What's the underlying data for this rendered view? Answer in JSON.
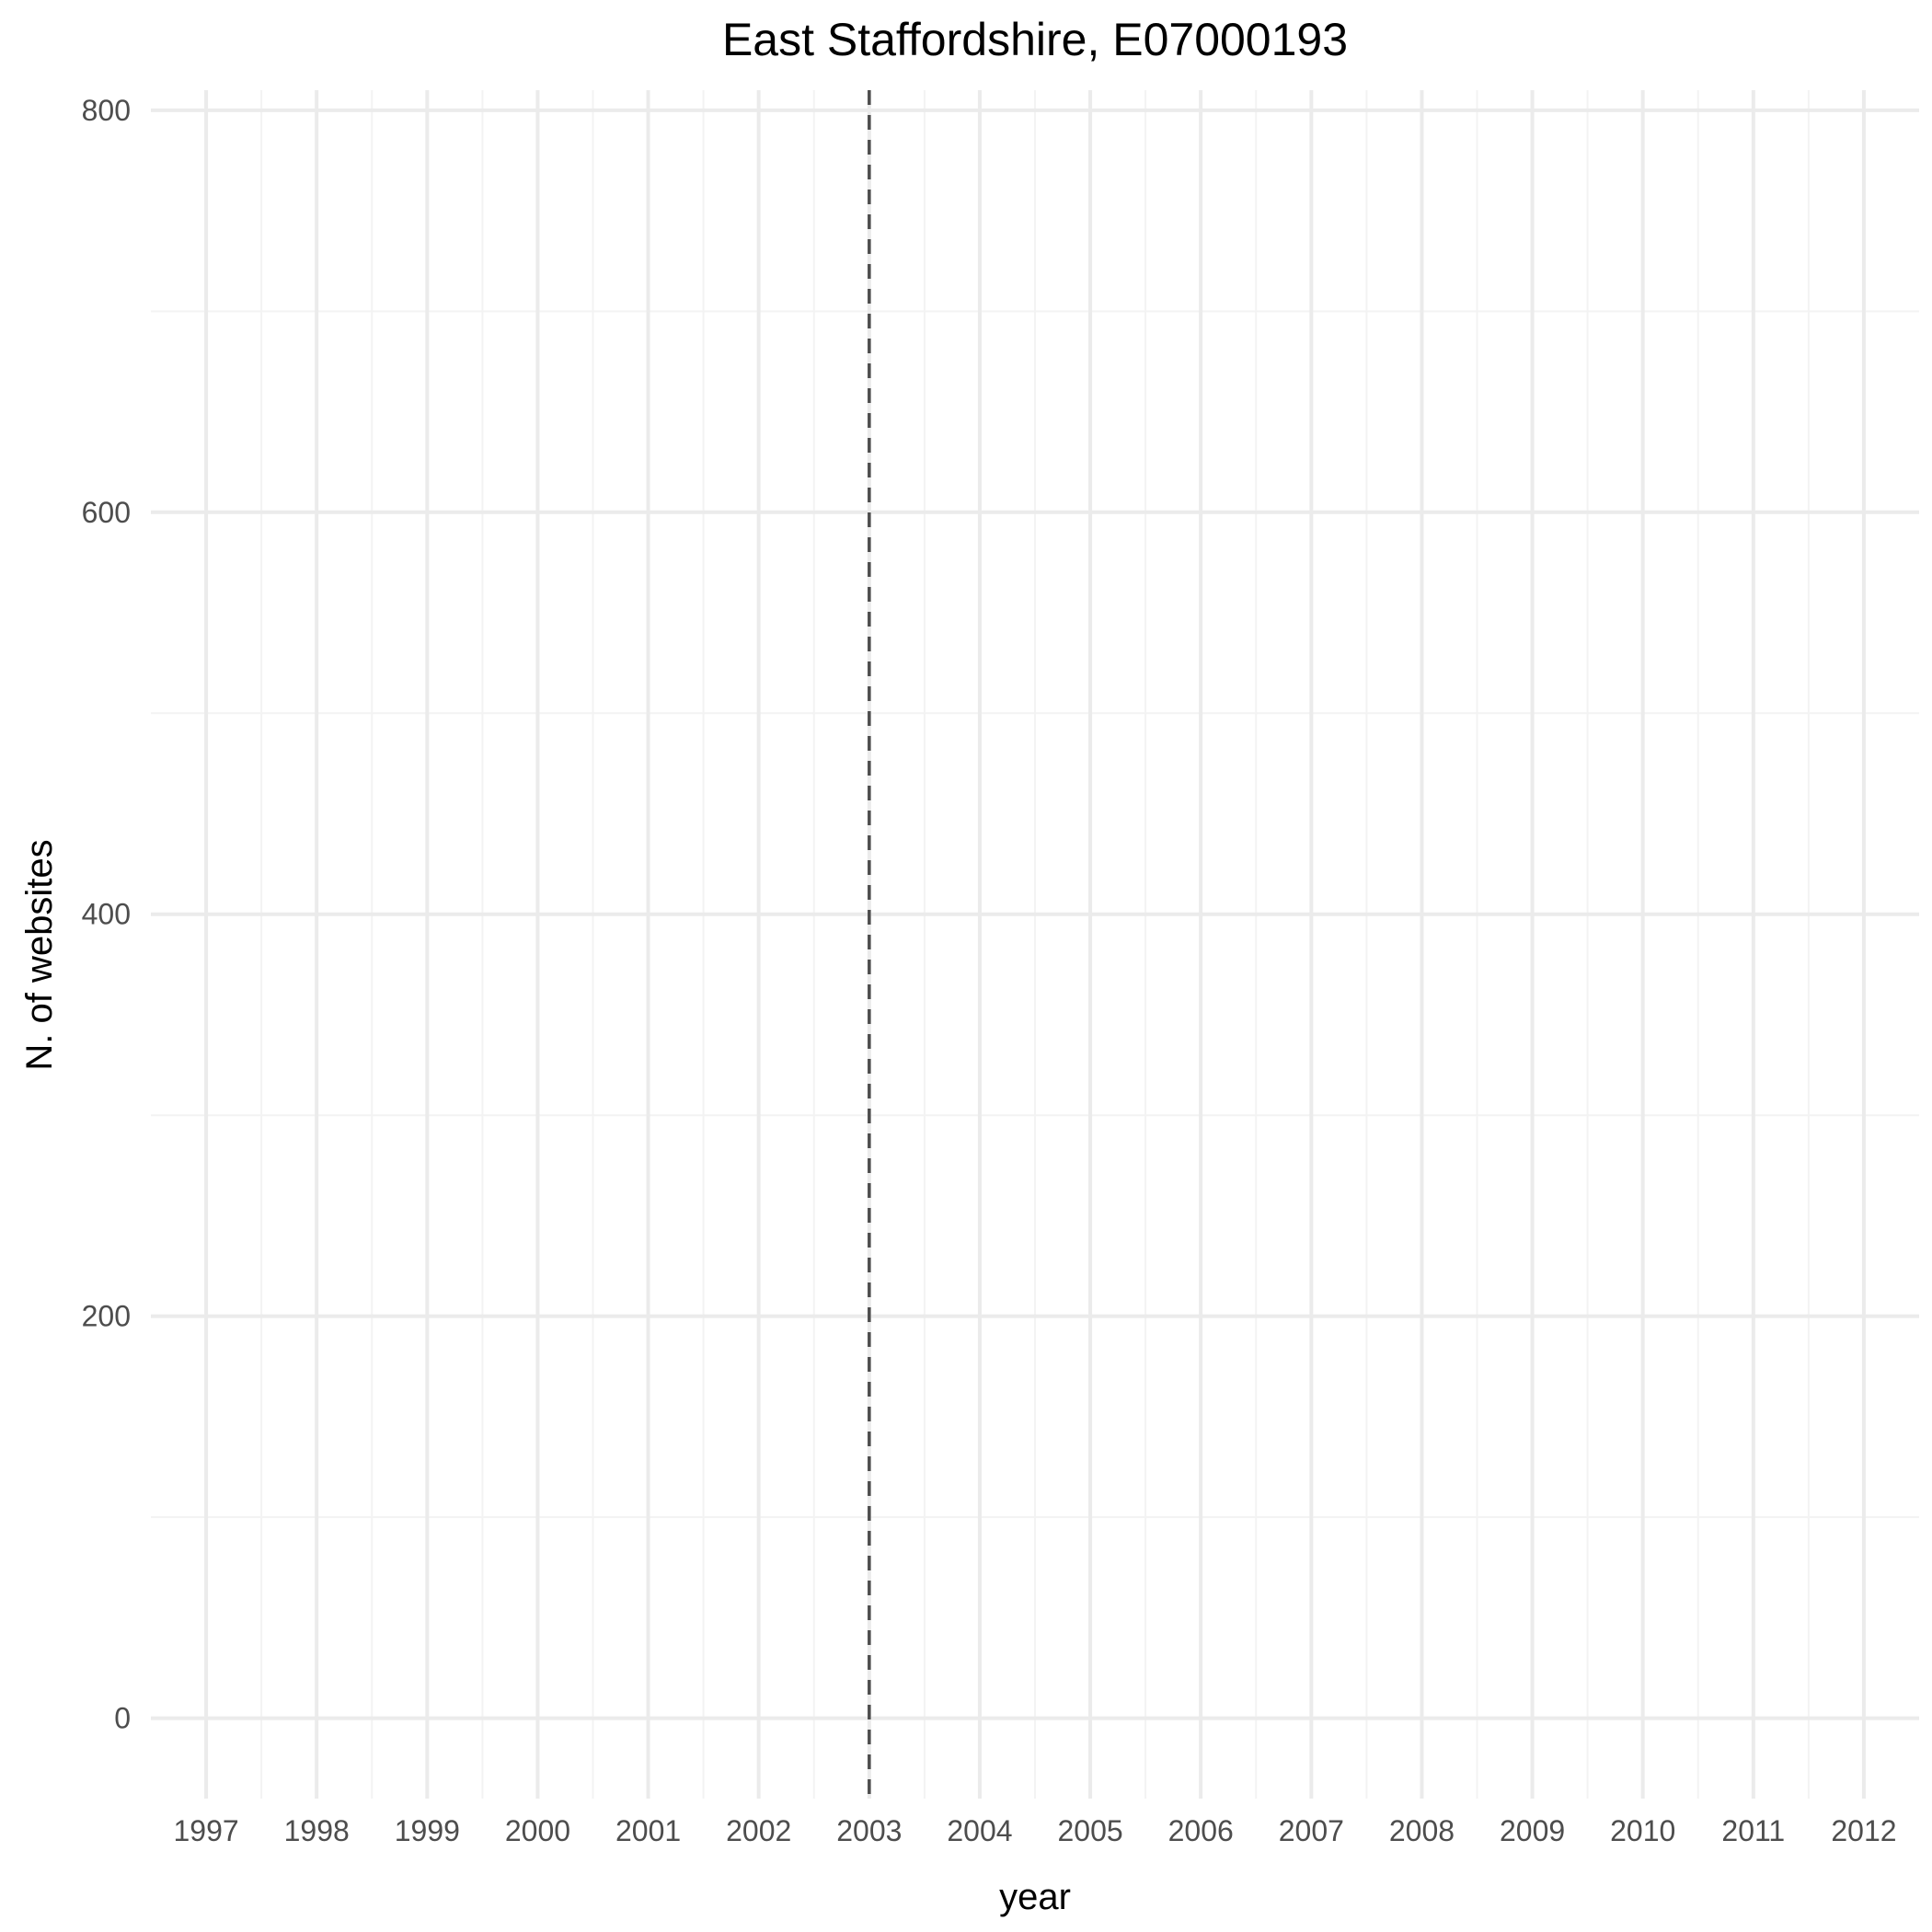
{
  "chart_data": {
    "type": "line",
    "title": "East Staffordshire, E07000193",
    "xlabel": "year",
    "ylabel": "N. of websites",
    "x_ticks": [
      1997,
      1998,
      1999,
      2000,
      2001,
      2002,
      2003,
      2004,
      2005,
      2006,
      2007,
      2008,
      2009,
      2010,
      2011,
      2012
    ],
    "y_ticks": [
      0,
      200,
      400,
      600,
      800
    ],
    "xlim": [
      1996.5,
      2012.5
    ],
    "ylim": [
      -40,
      810
    ],
    "series": [],
    "annotations": [
      {
        "type": "vline",
        "x": 2003,
        "style": "dashed",
        "color": "#4d4d4d"
      }
    ],
    "grid": true,
    "legend": "none",
    "colors": {
      "grid_major": "#ebebeb",
      "grid_minor": "#f3f3f3",
      "reference_line": "#4d4d4d"
    }
  }
}
